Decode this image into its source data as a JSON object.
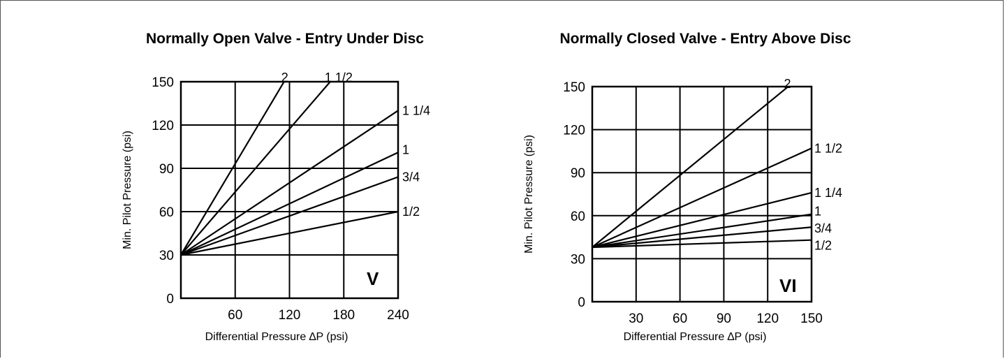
{
  "chart_data": [
    {
      "type": "line",
      "title": "Normally Open Valve - Entry Under Disc",
      "panel_label": "V",
      "xlabel": "Differential Pressure ∆P (psi)",
      "ylabel": "Min. Pilot Pressure (psi)",
      "xlim": [
        0,
        240
      ],
      "ylim": [
        0,
        150
      ],
      "x_ticks": [
        60,
        120,
        180,
        240
      ],
      "x_tick_labels": [
        "60",
        "120",
        "180",
        "240"
      ],
      "y_ticks": [
        0,
        30,
        60,
        90,
        120,
        150
      ],
      "y_tick_labels": [
        "0",
        "30",
        "60",
        "90",
        "120",
        "150"
      ],
      "grid": true,
      "series": [
        {
          "name": "2",
          "x": [
            0,
            114
          ],
          "y": [
            30,
            150
          ]
        },
        {
          "name": "1 1/2",
          "x": [
            0,
            165
          ],
          "y": [
            30,
            150
          ]
        },
        {
          "name": "1 1/4",
          "x": [
            0,
            240
          ],
          "y": [
            30,
            130
          ]
        },
        {
          "name": "1",
          "x": [
            0,
            240
          ],
          "y": [
            30,
            101
          ]
        },
        {
          "name": "3/4",
          "x": [
            0,
            240
          ],
          "y": [
            30,
            84
          ]
        },
        {
          "name": "1/2",
          "x": [
            0,
            240
          ],
          "y": [
            30,
            60
          ]
        }
      ]
    },
    {
      "type": "line",
      "title": "Normally Closed Valve - Entry Above Disc",
      "panel_label": "VI",
      "xlabel": "Differential Pressure ∆P (psi)",
      "ylabel": "Min. Pilot Pressure (psi)",
      "xlim": [
        0,
        150
      ],
      "ylim": [
        0,
        150
      ],
      "x_ticks": [
        30,
        60,
        90,
        120,
        150
      ],
      "x_tick_labels": [
        "30",
        "60",
        "90",
        "120",
        "150"
      ],
      "y_ticks": [
        0,
        30,
        60,
        90,
        120,
        150
      ],
      "y_tick_labels": [
        "0",
        "30",
        "60",
        "90",
        "120",
        "150"
      ],
      "grid": true,
      "series": [
        {
          "name": "2",
          "x": [
            0,
            134
          ],
          "y": [
            38,
            150
          ]
        },
        {
          "name": "1 1/2",
          "x": [
            0,
            150
          ],
          "y": [
            38,
            107
          ]
        },
        {
          "name": "1 1/4",
          "x": [
            0,
            150
          ],
          "y": [
            38,
            76
          ]
        },
        {
          "name": "1",
          "x": [
            0,
            150
          ],
          "y": [
            38,
            61
          ]
        },
        {
          "name": "3/4",
          "x": [
            0,
            150
          ],
          "y": [
            38,
            52
          ]
        },
        {
          "name": "1/2",
          "x": [
            0,
            150
          ],
          "y": [
            38,
            43
          ]
        }
      ]
    }
  ]
}
